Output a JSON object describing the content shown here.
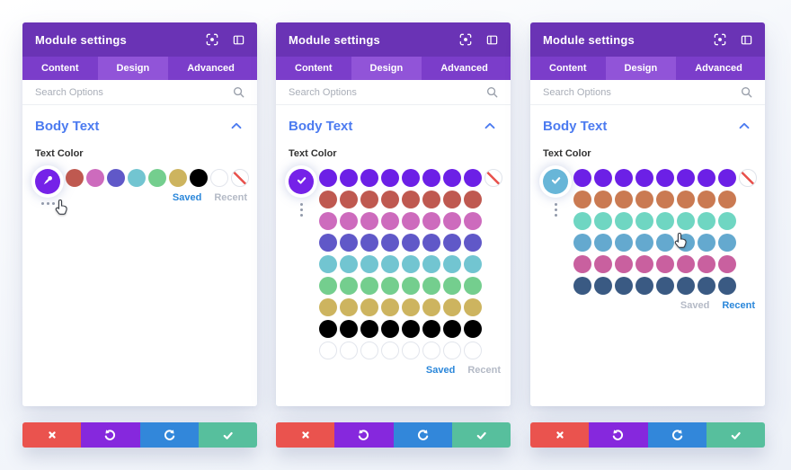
{
  "theme": {
    "header_bg": "#6a33b5",
    "tabbar_bg": "#7b3dca",
    "active_tab_bg": "#9154d8",
    "heading_blue": "#4c7bf0",
    "link_active_blue": "#2b87da",
    "link_inactive_gray": "#b4bac6"
  },
  "actions": [
    {
      "name": "discard",
      "icon": "x-icon",
      "color": "#ea534e"
    },
    {
      "name": "undo",
      "icon": "undo-icon",
      "color": "#8628dd"
    },
    {
      "name": "redo",
      "icon": "redo-icon",
      "color": "#3287da"
    },
    {
      "name": "accept",
      "icon": "check-icon",
      "color": "#57bf9d"
    }
  ],
  "panels": [
    {
      "title": "Module settings",
      "header_icons": [
        "preview-icon",
        "layout-icon"
      ],
      "tabs": [
        "Content",
        "Design",
        "Advanced"
      ],
      "active_tab": "Design",
      "search_placeholder": "Search Options",
      "section_title": "Body Text",
      "field_label": "Text Color",
      "picker": {
        "button_icon": "eyedropper-icon",
        "button_color": "#7522e8",
        "rows": [
          [
            "#bf5950",
            "#cd6bbd",
            "#6058c8",
            "#72c5d1",
            "#74ce8e",
            "#cdb45f",
            "#000000",
            "#ffffff",
            "none"
          ]
        ]
      },
      "links": {
        "saved": "Saved",
        "recent": "Recent",
        "active": "Saved"
      }
    },
    {
      "title": "Module settings",
      "header_icons": [
        "preview-icon",
        "layout-icon"
      ],
      "tabs": [
        "Content",
        "Design",
        "Advanced"
      ],
      "active_tab": "Design",
      "search_placeholder": "Search Options",
      "section_title": "Body Text",
      "field_label": "Text Color",
      "picker": {
        "button_icon": "check-icon",
        "button_color": "#7522e8",
        "rows": [
          [
            "#6c20e6",
            "#6c20e6",
            "#6c20e6",
            "#6c20e6",
            "#6c20e6",
            "#6c20e6",
            "#6c20e6",
            "#6c20e6",
            "none"
          ],
          [
            "#bf5950",
            "#bf5950",
            "#bf5950",
            "#bf5950",
            "#bf5950",
            "#bf5950",
            "#bf5950",
            "#bf5950"
          ],
          [
            "#cd6bbd",
            "#cd6bbd",
            "#cd6bbd",
            "#cd6bbd",
            "#cd6bbd",
            "#cd6bbd",
            "#cd6bbd",
            "#cd6bbd"
          ],
          [
            "#6058c8",
            "#6058c8",
            "#6058c8",
            "#6058c8",
            "#6058c8",
            "#6058c8",
            "#6058c8",
            "#6058c8"
          ],
          [
            "#72c5d1",
            "#72c5d1",
            "#72c5d1",
            "#72c5d1",
            "#72c5d1",
            "#72c5d1",
            "#72c5d1",
            "#72c5d1"
          ],
          [
            "#74ce8e",
            "#74ce8e",
            "#74ce8e",
            "#74ce8e",
            "#74ce8e",
            "#74ce8e",
            "#74ce8e",
            "#74ce8e"
          ],
          [
            "#cdb45f",
            "#cdb45f",
            "#cdb45f",
            "#cdb45f",
            "#cdb45f",
            "#cdb45f",
            "#cdb45f",
            "#cdb45f"
          ],
          [
            "#000000",
            "#000000",
            "#000000",
            "#000000",
            "#000000",
            "#000000",
            "#000000",
            "#000000"
          ],
          [
            "#ffffff",
            "#ffffff",
            "#ffffff",
            "#ffffff",
            "#ffffff",
            "#ffffff",
            "#ffffff",
            "#ffffff"
          ]
        ]
      },
      "links": {
        "saved": "Saved",
        "recent": "Recent",
        "active": "Saved"
      }
    },
    {
      "title": "Module settings",
      "header_icons": [
        "preview-icon",
        "layout-icon"
      ],
      "tabs": [
        "Content",
        "Design",
        "Advanced"
      ],
      "active_tab": "Design",
      "search_placeholder": "Search Options",
      "section_title": "Body Text",
      "field_label": "Text Color",
      "picker": {
        "button_icon": "check-icon",
        "button_color": "#68b6d8",
        "rows": [
          [
            "#6c20e6",
            "#6c20e6",
            "#6c20e6",
            "#6c20e6",
            "#6c20e6",
            "#6c20e6",
            "#6c20e6",
            "#6c20e6",
            "none"
          ],
          [
            "#ca7a52",
            "#ca7a52",
            "#ca7a52",
            "#ca7a52",
            "#ca7a52",
            "#ca7a52",
            "#ca7a52",
            "#ca7a52"
          ],
          [
            "#6fd6c2",
            "#6fd6c2",
            "#6fd6c2",
            "#6fd6c2",
            "#6fd6c2",
            "#6fd6c2",
            "#6fd6c2",
            "#6fd6c2"
          ],
          [
            "#64a9cf",
            "#64a9cf",
            "#64a9cf",
            "#64a9cf",
            "#64a9cf",
            "#64a9cf",
            "#64a9cf",
            "#64a9cf"
          ],
          [
            "#c9609f",
            "#c9609f",
            "#c9609f",
            "#c9609f",
            "#c9609f",
            "#c9609f",
            "#c9609f",
            "#c9609f"
          ],
          [
            "#3a5a83",
            "#3a5a83",
            "#3a5a83",
            "#3a5a83",
            "#3a5a83",
            "#3a5a83",
            "#3a5a83",
            "#3a5a83"
          ]
        ]
      },
      "links": {
        "saved": "Saved",
        "recent": "Recent",
        "active": "Recent"
      }
    }
  ]
}
